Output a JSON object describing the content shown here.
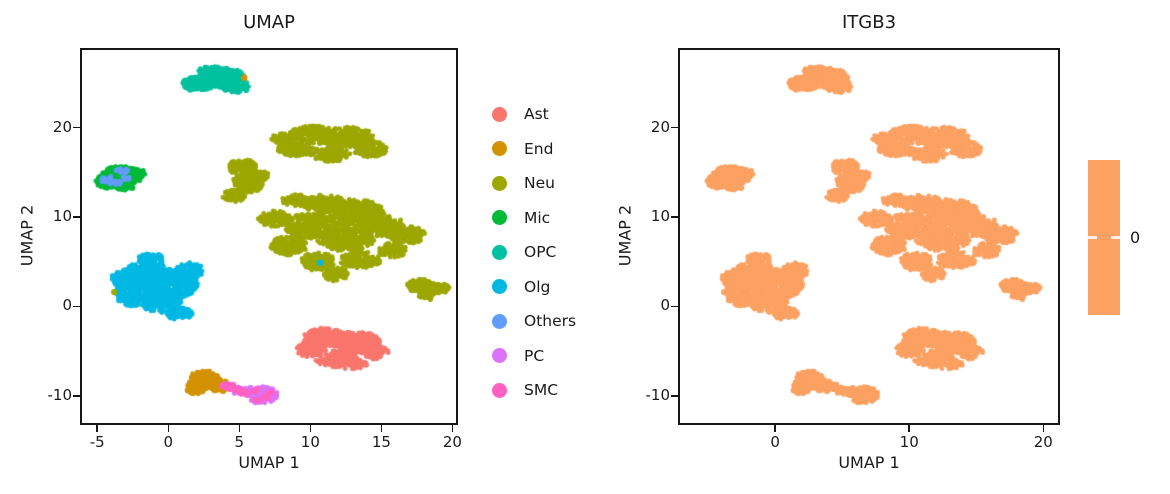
{
  "chart_data": {
    "type": "scatter",
    "description": "Two UMAP embeddings of single cells; left colored by cell type cluster, right colored by ITGB3 expression (uniform zero).",
    "panels": [
      {
        "title": "UMAP",
        "xlabel": "UMAP 1",
        "ylabel": "UMAP 2",
        "xticks": [
          -5,
          0,
          5,
          10,
          15,
          20
        ],
        "yticks": [
          -10,
          0,
          10,
          20
        ],
        "xlim": [
          -6.07,
          20.25
        ],
        "ylim": [
          -13.05,
          28.7
        ],
        "grid": false,
        "color_mode": "cluster",
        "legend_position": "right",
        "show_outliers": true
      },
      {
        "title": "ITGB3",
        "xlabel": "UMAP 1",
        "ylabel": "UMAP 2",
        "xticks": [
          0,
          10,
          20
        ],
        "yticks": [
          -10,
          0,
          10,
          20
        ],
        "xlim": [
          -7.1,
          21.1
        ],
        "ylim": [
          -13.05,
          28.7
        ],
        "grid": false,
        "color_mode": "uniform",
        "uniform_color": "#FBA162",
        "colorbar_label": "0",
        "colorbar_color": "#FBA162"
      }
    ],
    "point_radius": 2.4,
    "clusters": [
      {
        "name": "OPC",
        "color": "#00C19F",
        "blobs": [
          [
            3.9,
            25.6,
            1.5,
            1.1,
            260
          ],
          [
            2.2,
            25.0,
            1.2,
            0.8,
            140
          ],
          [
            4.8,
            24.6,
            1.0,
            0.7,
            90
          ],
          [
            3.0,
            26.3,
            0.9,
            0.6,
            70
          ],
          [
            1.6,
            24.6,
            0.6,
            0.45,
            40
          ]
        ]
      },
      {
        "name": "Mic",
        "color": "#00BA38",
        "blobs": [
          [
            -3.3,
            14.6,
            1.5,
            1.1,
            260
          ],
          [
            -4.2,
            14.0,
            0.9,
            0.8,
            110
          ],
          [
            -2.4,
            14.9,
            0.8,
            0.7,
            80
          ],
          [
            -3.0,
            13.4,
            0.7,
            0.5,
            50
          ]
        ]
      },
      {
        "name": "Neu",
        "color": "#9CA700",
        "blobs": [
          [
            10.2,
            19.2,
            1.7,
            1.0,
            200
          ],
          [
            12.6,
            18.9,
            1.9,
            1.2,
            260
          ],
          [
            14.2,
            17.6,
            1.2,
            0.9,
            120
          ],
          [
            9.0,
            17.6,
            1.3,
            0.8,
            130
          ],
          [
            11.4,
            17.0,
            1.4,
            0.8,
            130
          ],
          [
            8.0,
            18.8,
            0.8,
            0.6,
            60
          ],
          [
            5.2,
            15.6,
            1.0,
            0.9,
            110
          ],
          [
            5.6,
            13.8,
            1.1,
            1.1,
            150
          ],
          [
            4.6,
            12.4,
            0.8,
            0.7,
            80
          ],
          [
            6.4,
            14.6,
            0.7,
            0.6,
            60
          ],
          [
            11.0,
            11.5,
            1.5,
            1.0,
            180
          ],
          [
            13.0,
            10.5,
            2.2,
            1.5,
            350
          ],
          [
            10.0,
            9.0,
            1.8,
            1.4,
            260
          ],
          [
            12.5,
            7.5,
            2.0,
            1.3,
            280
          ],
          [
            15.0,
            9.0,
            1.7,
            1.2,
            200
          ],
          [
            16.8,
            8.0,
            1.3,
            1.0,
            130
          ],
          [
            8.5,
            6.8,
            1.3,
            1.1,
            150
          ],
          [
            10.5,
            5.0,
            1.3,
            1.0,
            140
          ],
          [
            13.5,
            5.2,
            1.5,
            0.9,
            140
          ],
          [
            7.5,
            9.8,
            1.2,
            0.9,
            120
          ],
          [
            9.0,
            11.9,
            1.0,
            0.7,
            80
          ],
          [
            15.8,
            6.3,
            1.0,
            0.8,
            90
          ],
          [
            11.8,
            3.6,
            0.9,
            0.8,
            80
          ],
          [
            17.8,
            2.3,
            1.0,
            0.8,
            90
          ],
          [
            19.0,
            2.0,
            0.8,
            0.6,
            60
          ],
          [
            18.3,
            1.2,
            0.7,
            0.5,
            40
          ]
        ]
      },
      {
        "name": "Olg",
        "color": "#00B9E3",
        "blobs": [
          [
            -1.5,
            3.5,
            1.8,
            1.5,
            280
          ],
          [
            0.3,
            2.5,
            1.8,
            1.6,
            300
          ],
          [
            -2.5,
            1.5,
            1.3,
            1.5,
            180
          ],
          [
            -0.5,
            0.5,
            1.5,
            1.2,
            170
          ],
          [
            1.5,
            4.0,
            1.0,
            0.9,
            100
          ],
          [
            -3.2,
            3.2,
            0.9,
            0.9,
            90
          ],
          [
            0.8,
            -0.8,
            0.9,
            0.7,
            70
          ],
          [
            -1.2,
            5.3,
            1.0,
            0.6,
            70
          ]
        ]
      },
      {
        "name": "Ast",
        "color": "#F8766D",
        "blobs": [
          [
            11.0,
            -3.5,
            1.5,
            1.1,
            200
          ],
          [
            13.2,
            -4.0,
            1.7,
            1.2,
            260
          ],
          [
            14.5,
            -5.0,
            1.0,
            0.9,
            110
          ],
          [
            11.8,
            -5.8,
            1.5,
            1.0,
            160
          ],
          [
            10.0,
            -4.8,
            1.0,
            0.9,
            100
          ],
          [
            13.0,
            -6.5,
            1.0,
            0.6,
            70
          ]
        ]
      },
      {
        "name": "End",
        "color": "#D39200",
        "blobs": [
          [
            2.6,
            -8.2,
            1.2,
            1.0,
            170
          ],
          [
            3.6,
            -8.9,
            0.8,
            0.7,
            80
          ],
          [
            1.9,
            -9.2,
            0.7,
            0.6,
            60
          ]
        ]
      },
      {
        "name": "PC",
        "color": "#DB72FB",
        "blobs": [
          [
            6.6,
            -9.9,
            1.1,
            1.0,
            160
          ],
          [
            5.7,
            -9.5,
            0.7,
            0.5,
            50
          ],
          [
            5.0,
            -9.4,
            0.6,
            0.4,
            35
          ]
        ]
      },
      {
        "name": "Others",
        "color": "#619CFF",
        "blobs": [
          [
            -4.3,
            14.2,
            0.55,
            0.4,
            28
          ],
          [
            -3.3,
            15.2,
            0.5,
            0.3,
            18
          ],
          [
            -3.7,
            13.8,
            0.45,
            0.3,
            14
          ],
          [
            -2.95,
            14.35,
            0.3,
            0.25,
            10
          ]
        ]
      },
      {
        "name": "SMC",
        "color": "#FF61C3",
        "blobs": [
          [
            4.2,
            -8.9,
            0.5,
            0.35,
            30
          ],
          [
            4.8,
            -9.3,
            0.5,
            0.35,
            30
          ],
          [
            5.3,
            -9.7,
            0.4,
            0.3,
            22
          ],
          [
            6.2,
            -9.4,
            0.3,
            0.25,
            12
          ],
          [
            6.9,
            -10.2,
            0.3,
            0.25,
            12
          ],
          [
            6.3,
            -10.5,
            0.3,
            0.2,
            10
          ],
          [
            7.2,
            -9.6,
            0.25,
            0.2,
            8
          ]
        ]
      }
    ],
    "outliers": [
      {
        "x": 5.35,
        "y": 25.6,
        "cluster": "End"
      },
      {
        "x": -3.8,
        "y": 1.6,
        "cluster": "Neu"
      },
      {
        "x": 10.7,
        "y": 4.9,
        "cluster": "Olg"
      }
    ]
  },
  "legend": {
    "items": [
      {
        "label": "Ast",
        "color": "#F8766D"
      },
      {
        "label": "End",
        "color": "#D39200"
      },
      {
        "label": "Neu",
        "color": "#9CA700"
      },
      {
        "label": "Mic",
        "color": "#00BA38"
      },
      {
        "label": "OPC",
        "color": "#00C19F"
      },
      {
        "label": "Olg",
        "color": "#00B9E3"
      },
      {
        "label": "Others",
        "color": "#619CFF"
      },
      {
        "label": "PC",
        "color": "#DB72FB"
      },
      {
        "label": "SMC",
        "color": "#FF61C3"
      }
    ]
  }
}
